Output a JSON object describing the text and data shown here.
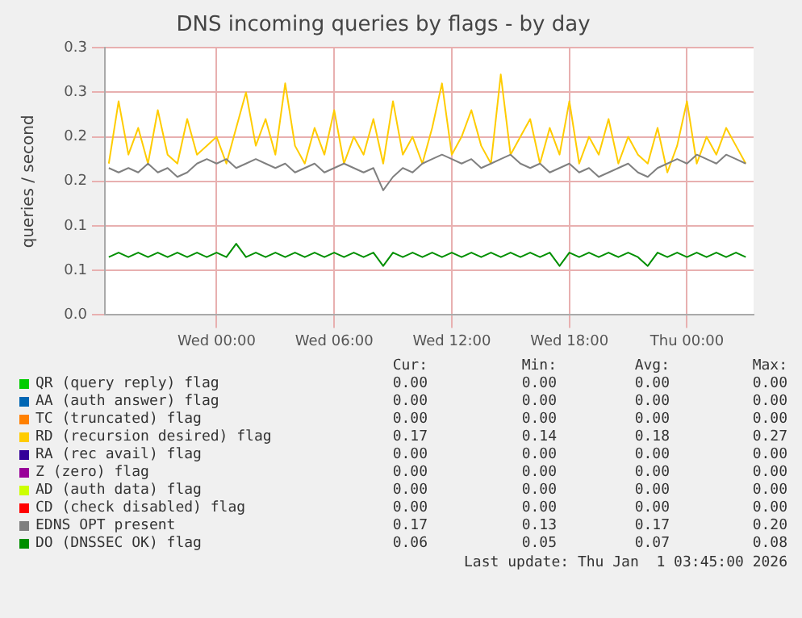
{
  "chart_data": {
    "type": "line",
    "title": "DNS incoming queries by flags - by day",
    "ylabel": "queries / second",
    "x": [
      "2025-12-30T18:30",
      "2025-12-30T19:00",
      "2025-12-30T19:30",
      "2025-12-30T20:00",
      "2025-12-30T20:30",
      "2025-12-30T21:00",
      "2025-12-30T21:30",
      "2025-12-30T22:00",
      "2025-12-30T22:30",
      "2025-12-30T23:00",
      "2025-12-30T23:30",
      "2025-12-31T00:00",
      "2025-12-31T00:30",
      "2025-12-31T01:00",
      "2025-12-31T01:30",
      "2025-12-31T02:00",
      "2025-12-31T02:30",
      "2025-12-31T03:00",
      "2025-12-31T03:30",
      "2025-12-31T04:00",
      "2025-12-31T04:30",
      "2025-12-31T05:00",
      "2025-12-31T05:30",
      "2025-12-31T06:00",
      "2025-12-31T06:30",
      "2025-12-31T07:00",
      "2025-12-31T07:30",
      "2025-12-31T08:00",
      "2025-12-31T08:30",
      "2025-12-31T09:00",
      "2025-12-31T09:30",
      "2025-12-31T10:00",
      "2025-12-31T10:30",
      "2025-12-31T11:00",
      "2025-12-31T11:30",
      "2025-12-31T12:00",
      "2025-12-31T12:30",
      "2025-12-31T13:00",
      "2025-12-31T13:30",
      "2025-12-31T14:00",
      "2025-12-31T14:30",
      "2025-12-31T15:00",
      "2025-12-31T15:30",
      "2025-12-31T16:00",
      "2025-12-31T16:30",
      "2025-12-31T17:00",
      "2025-12-31T17:30",
      "2025-12-31T18:00",
      "2025-12-31T18:30",
      "2025-12-31T19:00",
      "2025-12-31T19:30",
      "2025-12-31T20:00",
      "2025-12-31T20:30",
      "2025-12-31T21:00",
      "2025-12-31T21:30",
      "2025-12-31T22:00",
      "2025-12-31T22:30",
      "2025-12-31T23:00",
      "2025-12-31T23:30",
      "2026-01-01T00:00",
      "2026-01-01T00:30",
      "2026-01-01T01:00",
      "2026-01-01T01:30",
      "2026-01-01T02:00",
      "2026-01-01T02:30",
      "2026-01-01T03:00"
    ],
    "xlim": [
      "2025-12-30T18:18",
      "2026-01-01T03:24"
    ],
    "xticks": [
      {
        "value": "2025-12-31T00:00",
        "label": "Wed 00:00"
      },
      {
        "value": "2025-12-31T06:00",
        "label": "Wed 06:00"
      },
      {
        "value": "2025-12-31T12:00",
        "label": "Wed 12:00"
      },
      {
        "value": "2025-12-31T18:00",
        "label": "Wed 18:00"
      },
      {
        "value": "2026-01-01T00:00",
        "label": "Thu 00:00"
      }
    ],
    "ylim": [
      0,
      0.3
    ],
    "yticks": [
      {
        "value": 0,
        "label": "0.0"
      },
      {
        "value": 0.05,
        "label": "0.1"
      },
      {
        "value": 0.1,
        "label": "0.1"
      },
      {
        "value": 0.15,
        "label": "0.2"
      },
      {
        "value": 0.2,
        "label": "0.2"
      },
      {
        "value": 0.25,
        "label": "0.3"
      },
      {
        "value": 0.3,
        "label": "0.3"
      }
    ],
    "grid": true,
    "legend": "bottom",
    "marker": "none",
    "line_style": "solid",
    "series": [
      {
        "name": "QR (query reply) flag",
        "color": "#00cc00",
        "values": [
          null,
          null,
          null,
          null,
          null,
          null,
          null,
          null,
          null,
          null,
          null,
          null,
          null,
          null,
          null,
          null,
          null,
          null,
          null,
          null,
          null,
          null,
          null,
          null,
          null,
          null,
          null,
          null,
          null,
          null,
          null,
          null,
          null,
          null,
          null,
          null,
          null,
          null,
          null,
          null,
          null,
          null,
          null,
          null,
          null,
          null,
          null,
          null,
          null,
          null,
          null,
          null,
          null,
          null,
          null,
          null,
          null,
          null,
          null,
          null,
          null,
          null,
          null,
          null,
          null,
          null
        ]
      },
      {
        "name": "AA (auth answer) flag",
        "color": "#0066b3",
        "values": [
          null,
          null,
          null,
          null,
          null,
          null,
          null,
          null,
          null,
          null,
          null,
          null,
          null,
          null,
          null,
          null,
          null,
          null,
          null,
          null,
          null,
          null,
          null,
          null,
          null,
          null,
          null,
          null,
          null,
          null,
          null,
          null,
          null,
          null,
          null,
          null,
          null,
          null,
          null,
          null,
          null,
          null,
          null,
          null,
          null,
          null,
          null,
          null,
          null,
          null,
          null,
          null,
          null,
          null,
          null,
          null,
          null,
          null,
          null,
          null,
          null,
          null,
          null,
          null,
          null,
          null
        ]
      },
      {
        "name": "TC (truncated) flag",
        "color": "#ff8000",
        "values": [
          null,
          null,
          null,
          null,
          null,
          null,
          null,
          null,
          null,
          null,
          null,
          null,
          null,
          null,
          null,
          null,
          null,
          null,
          null,
          null,
          null,
          null,
          null,
          null,
          null,
          null,
          null,
          null,
          null,
          null,
          null,
          null,
          null,
          null,
          null,
          null,
          null,
          null,
          null,
          null,
          null,
          null,
          null,
          null,
          null,
          null,
          null,
          null,
          null,
          null,
          null,
          null,
          null,
          null,
          null,
          null,
          null,
          null,
          null,
          null,
          null,
          null,
          null,
          null,
          null,
          null
        ]
      },
      {
        "name": "RD (recursion desired) flag",
        "color": "#ffcc00",
        "values": [
          0.17,
          0.24,
          0.18,
          0.21,
          0.17,
          0.23,
          0.18,
          0.17,
          0.22,
          0.18,
          0.19,
          0.2,
          0.17,
          0.21,
          0.25,
          0.19,
          0.22,
          0.18,
          0.26,
          0.19,
          0.17,
          0.21,
          0.18,
          0.23,
          0.17,
          0.2,
          0.18,
          0.22,
          0.17,
          0.24,
          0.18,
          0.2,
          0.17,
          0.21,
          0.26,
          0.18,
          0.2,
          0.23,
          0.19,
          0.17,
          0.27,
          0.18,
          0.2,
          0.22,
          0.17,
          0.21,
          0.18,
          0.24,
          0.17,
          0.2,
          0.18,
          0.22,
          0.17,
          0.2,
          0.18,
          0.17,
          0.21,
          0.16,
          0.19,
          0.24,
          0.17,
          0.2,
          0.18,
          0.21,
          0.19,
          0.17
        ]
      },
      {
        "name": "RA (rec avail) flag",
        "color": "#330099",
        "values": [
          null,
          null,
          null,
          null,
          null,
          null,
          null,
          null,
          null,
          null,
          null,
          null,
          null,
          null,
          null,
          null,
          null,
          null,
          null,
          null,
          null,
          null,
          null,
          null,
          null,
          null,
          null,
          null,
          null,
          null,
          null,
          null,
          null,
          null,
          null,
          null,
          null,
          null,
          null,
          null,
          null,
          null,
          null,
          null,
          null,
          null,
          null,
          null,
          null,
          null,
          null,
          null,
          null,
          null,
          null,
          null,
          null,
          null,
          null,
          null,
          null,
          null,
          null,
          null,
          null,
          null
        ]
      },
      {
        "name": "Z (zero) flag",
        "color": "#990099",
        "values": [
          null,
          null,
          null,
          null,
          null,
          null,
          null,
          null,
          null,
          null,
          null,
          null,
          null,
          null,
          null,
          null,
          null,
          null,
          null,
          null,
          null,
          null,
          null,
          null,
          null,
          null,
          null,
          null,
          null,
          null,
          null,
          null,
          null,
          null,
          null,
          null,
          null,
          null,
          null,
          null,
          null,
          null,
          null,
          null,
          null,
          null,
          null,
          null,
          null,
          null,
          null,
          null,
          null,
          null,
          null,
          null,
          null,
          null,
          null,
          null,
          null,
          null,
          null,
          null,
          null,
          null
        ]
      },
      {
        "name": "AD (auth data) flag",
        "color": "#ccff00",
        "values": [
          null,
          null,
          null,
          null,
          null,
          null,
          null,
          null,
          null,
          null,
          null,
          null,
          null,
          null,
          null,
          null,
          null,
          null,
          null,
          null,
          null,
          null,
          null,
          null,
          null,
          null,
          null,
          null,
          null,
          null,
          null,
          null,
          null,
          null,
          null,
          null,
          null,
          null,
          null,
          null,
          null,
          null,
          null,
          null,
          null,
          null,
          null,
          null,
          null,
          null,
          null,
          null,
          null,
          null,
          null,
          null,
          null,
          null,
          null,
          null,
          null,
          null,
          null,
          null,
          null,
          null
        ]
      },
      {
        "name": "CD (check disabled) flag",
        "color": "#ff0000",
        "values": [
          null,
          null,
          null,
          null,
          null,
          null,
          null,
          null,
          null,
          null,
          null,
          null,
          null,
          null,
          null,
          null,
          null,
          null,
          null,
          null,
          null,
          null,
          null,
          null,
          null,
          null,
          null,
          null,
          null,
          null,
          null,
          null,
          null,
          null,
          null,
          null,
          null,
          null,
          null,
          null,
          null,
          null,
          null,
          null,
          null,
          null,
          null,
          null,
          null,
          null,
          null,
          null,
          null,
          null,
          null,
          null,
          null,
          null,
          null,
          null,
          null,
          null,
          null,
          null,
          null,
          null
        ]
      },
      {
        "name": "EDNS OPT present",
        "color": "#808080",
        "values": [
          0.165,
          0.16,
          0.165,
          0.16,
          0.17,
          0.16,
          0.165,
          0.155,
          0.16,
          0.17,
          0.175,
          0.17,
          0.175,
          0.165,
          0.17,
          0.175,
          0.17,
          0.165,
          0.17,
          0.16,
          0.165,
          0.17,
          0.16,
          0.165,
          0.17,
          0.165,
          0.16,
          0.165,
          0.14,
          0.155,
          0.165,
          0.16,
          0.17,
          0.175,
          0.18,
          0.175,
          0.17,
          0.175,
          0.165,
          0.17,
          0.175,
          0.18,
          0.17,
          0.165,
          0.17,
          0.16,
          0.165,
          0.17,
          0.16,
          0.165,
          0.155,
          0.16,
          0.165,
          0.17,
          0.16,
          0.155,
          0.165,
          0.17,
          0.175,
          0.17,
          0.18,
          0.175,
          0.17,
          0.18,
          0.175,
          0.17
        ]
      },
      {
        "name": "DO (DNSSEC OK) flag",
        "color": "#008f00",
        "values": [
          0.065,
          0.07,
          0.065,
          0.07,
          0.065,
          0.07,
          0.065,
          0.07,
          0.065,
          0.07,
          0.065,
          0.07,
          0.065,
          0.08,
          0.065,
          0.07,
          0.065,
          0.07,
          0.065,
          0.07,
          0.065,
          0.07,
          0.065,
          0.07,
          0.065,
          0.07,
          0.065,
          0.07,
          0.055,
          0.07,
          0.065,
          0.07,
          0.065,
          0.07,
          0.065,
          0.07,
          0.065,
          0.07,
          0.065,
          0.07,
          0.065,
          0.07,
          0.065,
          0.07,
          0.065,
          0.07,
          0.055,
          0.07,
          0.065,
          0.07,
          0.065,
          0.07,
          0.065,
          0.07,
          0.065,
          0.055,
          0.07,
          0.065,
          0.07,
          0.065,
          0.07,
          0.065,
          0.07,
          0.065,
          0.07,
          0.065
        ]
      }
    ],
    "annotations": [
      "Cur:",
      "Min:",
      "Avg:",
      "Max:",
      "0.00",
      "0.00",
      "0.00",
      "0.00",
      "0.00",
      "0.00",
      "0.00",
      "0.00",
      "0.00",
      "0.00",
      "0.00",
      "0.00",
      "0.17",
      "0.14",
      "0.18",
      "0.27",
      "0.00",
      "0.00",
      "0.00",
      "0.00",
      "0.00",
      "0.00",
      "0.00",
      "0.00",
      "0.00",
      "0.00",
      "0.00",
      "0.00",
      "0.00",
      "0.00",
      "0.00",
      "0.00",
      "0.17",
      "0.13",
      "0.17",
      "0.20",
      "0.06",
      "0.05",
      "0.07",
      "0.08",
      "Last update: Thu Jan  1 03:45:00 2026"
    ]
  }
}
